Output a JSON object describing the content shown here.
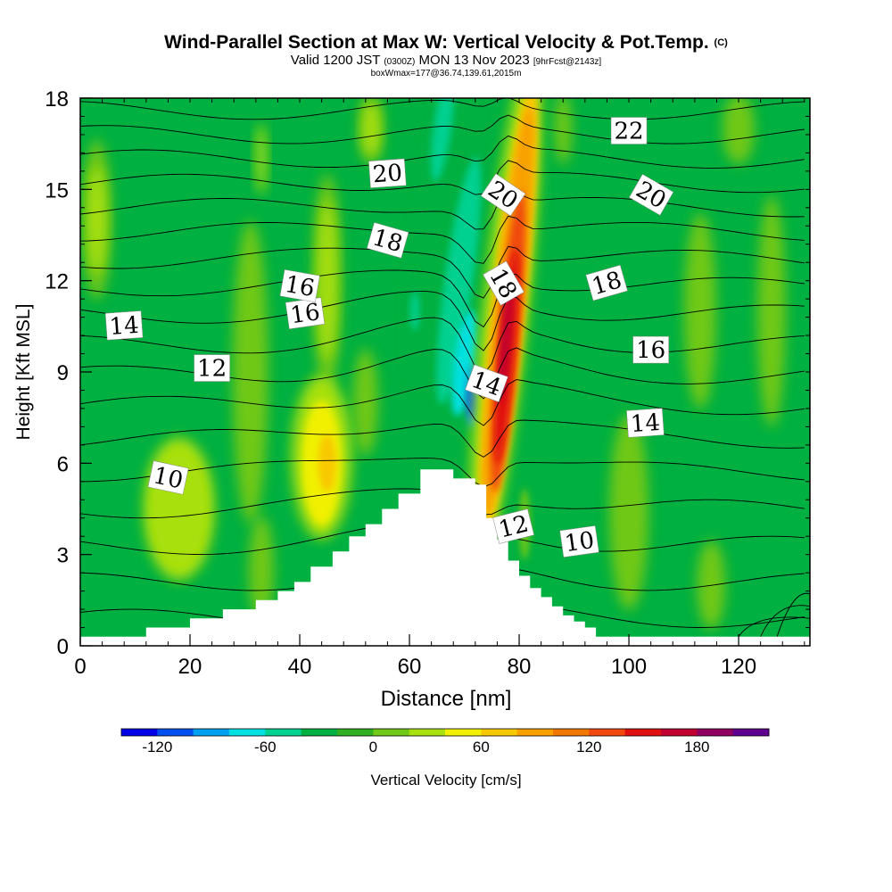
{
  "header": {
    "title": "Wind-Parallel Section at Max W: Vertical Velocity & Pot.Temp.",
    "copyright": "(C)",
    "valid_prefix": "Valid 1200 JST",
    "valid_zulu": "(0300Z)",
    "valid_date": "MON 13 Nov 2023",
    "forecast": "[9hrFcst@2143z]",
    "box_info": "boxWmax=177@36.74,139.61,2015m"
  },
  "chart_data": {
    "type": "contour-section",
    "xlabel": "Distance [nm]",
    "ylabel": "Height [Kft MSL]",
    "xlim": [
      0,
      133
    ],
    "ylim": [
      0,
      18
    ],
    "x_ticks": [
      "0",
      "20",
      "40",
      "60",
      "80",
      "100",
      "120"
    ],
    "y_ticks": [
      "0",
      "3",
      "6",
      "9",
      "12",
      "15",
      "18"
    ],
    "terrain": {
      "x": [
        0,
        12,
        12,
        20,
        20,
        26,
        26,
        32,
        32,
        36,
        36,
        39,
        39,
        42,
        42,
        46,
        46,
        49,
        49,
        52,
        52,
        55,
        55,
        58,
        58,
        62,
        62,
        68,
        68,
        72,
        72,
        74,
        74,
        76,
        76,
        78,
        78,
        80,
        80,
        82,
        82,
        84,
        84,
        86,
        86,
        88,
        88,
        90,
        90,
        92,
        92,
        94,
        94,
        96,
        96,
        100,
        100,
        106,
        106,
        114,
        114,
        118,
        118,
        133
      ],
      "y": [
        0.3,
        0.3,
        0.6,
        0.6,
        0.9,
        0.9,
        1.2,
        1.2,
        1.5,
        1.5,
        1.8,
        1.8,
        2.1,
        2.1,
        2.6,
        2.6,
        3.1,
        3.1,
        3.6,
        3.6,
        4.0,
        4.0,
        4.5,
        4.5,
        5.0,
        5.0,
        5.8,
        5.8,
        5.5,
        5.5,
        5.3,
        5.3,
        4.2,
        4.2,
        3.5,
        3.5,
        2.8,
        2.8,
        2.3,
        2.3,
        1.9,
        1.9,
        1.6,
        1.6,
        1.3,
        1.3,
        1.0,
        1.0,
        0.8,
        0.8,
        0.6,
        0.6,
        0.3,
        0.3,
        0.3,
        0.3,
        0.3,
        0.3,
        0.3,
        0.3,
        0.3,
        0.3,
        0.3,
        0.3
      ]
    },
    "vertical_velocity_extrema": [
      {
        "x": 77.5,
        "y": 10.0,
        "w": 177
      },
      {
        "x": 71.5,
        "y": 8.2,
        "w": -110
      }
    ],
    "theta_contour_labels": [
      {
        "value": "10",
        "x": 16,
        "y": 5.5
      },
      {
        "value": "10",
        "x": 91,
        "y": 3.4
      },
      {
        "value": "12",
        "x": 24,
        "y": 9.1
      },
      {
        "value": "12",
        "x": 79,
        "y": 3.9
      },
      {
        "value": "14",
        "x": 8,
        "y": 10.5
      },
      {
        "value": "14",
        "x": 74,
        "y": 8.6
      },
      {
        "value": "14",
        "x": 103,
        "y": 7.3
      },
      {
        "value": "16",
        "x": 41,
        "y": 10.9
      },
      {
        "value": "16",
        "x": 104,
        "y": 9.7
      },
      {
        "value": "16",
        "x": 40,
        "y": 11.8
      },
      {
        "value": "18",
        "x": 56,
        "y": 13.3
      },
      {
        "value": "18",
        "x": 77,
        "y": 11.9
      },
      {
        "value": "18",
        "x": 96,
        "y": 11.9
      },
      {
        "value": "20",
        "x": 56,
        "y": 15.5
      },
      {
        "value": "20",
        "x": 77,
        "y": 14.8
      },
      {
        "value": "20",
        "x": 104,
        "y": 14.8
      },
      {
        "value": "22",
        "x": 100,
        "y": 16.9
      }
    ],
    "colorbar": {
      "label": "Vertical Velocity [cm/s]",
      "tick_labels": [
        "-120",
        "-60",
        "0",
        "60",
        "120",
        "180"
      ],
      "tick_values": [
        -120,
        -60,
        0,
        60,
        120,
        180
      ],
      "min": -140,
      "max": 220,
      "step": 20,
      "colors": [
        "#0000e8",
        "#0050f0",
        "#00a0f0",
        "#00e0e0",
        "#00d090",
        "#00b040",
        "#30b020",
        "#70c818",
        "#a8e010",
        "#f0f000",
        "#f8c800",
        "#f8a000",
        "#f07800",
        "#f04810",
        "#e01010",
        "#c00030",
        "#900060",
        "#600090"
      ]
    }
  }
}
